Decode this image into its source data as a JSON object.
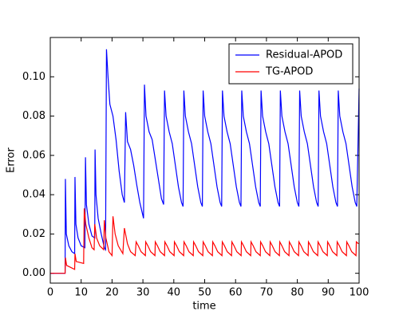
{
  "chart_data": {
    "type": "line",
    "xlabel": "time",
    "ylabel": "Error",
    "xlim": [
      0,
      100
    ],
    "xticks": [
      0,
      10,
      20,
      30,
      40,
      50,
      60,
      70,
      80,
      90,
      100
    ],
    "ylim": [
      -0.005,
      0.12
    ],
    "yticks": [
      {
        "value": 0,
        "label": "0.00"
      },
      0.02,
      0.04,
      0.06,
      0.08,
      {
        "value": 0.1,
        "label": "0.10"
      }
    ],
    "legend": "upper right",
    "series": [
      {
        "name": "Residual-APOD",
        "color": "#0000ff",
        "x": [
          0,
          4.8,
          4.9,
          5.2,
          6,
          7,
          7.9,
          8,
          8.3,
          9,
          10,
          11.2,
          11.4,
          11.7,
          12.5,
          13.5,
          14.4,
          14.5,
          14.8,
          15.5,
          16.5,
          17.5,
          17.9,
          18.2,
          18.7,
          19.3,
          20.3,
          21.3,
          22.3,
          23.3,
          24,
          24.4,
          25,
          26,
          27,
          28,
          29,
          30.2,
          30.5,
          31,
          32,
          33,
          34,
          35,
          36,
          36.7,
          37,
          37.5,
          38.5,
          39.5,
          40.5,
          41.5,
          42.5,
          43,
          43.25,
          43.75,
          44.75,
          45.75,
          46.75,
          47.75,
          48.75,
          49.25,
          49.5,
          50,
          51,
          52,
          53,
          54,
          55,
          55.5,
          55.75,
          56.25,
          57.25,
          58.25,
          59.25,
          60.25,
          61.25,
          61.75,
          62,
          62.5,
          63.5,
          64.5,
          65.5,
          66.5,
          67.5,
          68,
          68.25,
          68.75,
          69.75,
          70.75,
          71.75,
          72.75,
          73.75,
          74.25,
          74.5,
          75,
          76,
          77,
          78,
          79,
          80,
          80.5,
          80.75,
          81.25,
          82.25,
          83.25,
          84.25,
          85.25,
          86.25,
          86.75,
          87,
          87.5,
          88.5,
          89.5,
          90.5,
          91.5,
          92.5,
          93,
          93.25,
          93.75,
          94.75,
          95.75,
          96.75,
          97.75,
          98.75,
          99.25,
          100
        ],
        "values": [
          0,
          0,
          0.048,
          0.02,
          0.014,
          0.011,
          0.01,
          0.049,
          0.025,
          0.018,
          0.014,
          0.013,
          0.059,
          0.035,
          0.025,
          0.019,
          0.018,
          0.063,
          0.04,
          0.028,
          0.02,
          0.013,
          0.012,
          0.114,
          0.1,
          0.086,
          0.08,
          0.068,
          0.052,
          0.04,
          0.036,
          0.082,
          0.067,
          0.063,
          0.055,
          0.045,
          0.036,
          0.028,
          0.096,
          0.08,
          0.072,
          0.068,
          0.058,
          0.048,
          0.038,
          0.035,
          0.093,
          0.08,
          0.072,
          0.066,
          0.055,
          0.044,
          0.036,
          0.034,
          0.093,
          0.08,
          0.072,
          0.066,
          0.055,
          0.044,
          0.036,
          0.034,
          0.093,
          0.08,
          0.072,
          0.066,
          0.055,
          0.044,
          0.036,
          0.034,
          0.093,
          0.08,
          0.072,
          0.066,
          0.055,
          0.044,
          0.036,
          0.034,
          0.093,
          0.08,
          0.072,
          0.066,
          0.055,
          0.044,
          0.036,
          0.034,
          0.093,
          0.08,
          0.072,
          0.066,
          0.055,
          0.044,
          0.036,
          0.034,
          0.093,
          0.08,
          0.072,
          0.066,
          0.055,
          0.044,
          0.036,
          0.034,
          0.093,
          0.08,
          0.072,
          0.066,
          0.055,
          0.044,
          0.036,
          0.034,
          0.093,
          0.08,
          0.072,
          0.066,
          0.055,
          0.044,
          0.036,
          0.034,
          0.093,
          0.08,
          0.072,
          0.066,
          0.055,
          0.044,
          0.036,
          0.034,
          0.094
        ]
      },
      {
        "name": "TG-APOD",
        "color": "#ff0000",
        "x": [
          0,
          4.8,
          4.9,
          5.3,
          7.9,
          8,
          8.4,
          10.8,
          11,
          11.5,
          12.5,
          13.5,
          14.2,
          14.4,
          15,
          16,
          17.3,
          17.5,
          18,
          19,
          20,
          20.3,
          21,
          22,
          23.5,
          24,
          25,
          26,
          27.5,
          27.8,
          28.5,
          29.4,
          30.8,
          30.9,
          31.6,
          32.5,
          33.9,
          34,
          34.7,
          35.6,
          37,
          37.1,
          37.8,
          38.7,
          40.1,
          40.2,
          40.9,
          41.8,
          43.2,
          43.3,
          44,
          44.9,
          46.3,
          46.4,
          47.1,
          48,
          49.4,
          49.5,
          50.2,
          51.1,
          52.5,
          52.6,
          53.3,
          54.2,
          55.6,
          55.7,
          56.4,
          57.3,
          58.7,
          58.8,
          59.5,
          60.4,
          61.8,
          61.9,
          62.6,
          63.5,
          64.9,
          65,
          65.7,
          66.6,
          68,
          68.1,
          68.8,
          69.7,
          71.1,
          71.2,
          71.9,
          72.8,
          74.2,
          74.3,
          75,
          75.9,
          77.3,
          77.4,
          78.1,
          79,
          80.4,
          80.5,
          81.2,
          82.1,
          83.5,
          83.6,
          84.3,
          85.2,
          86.6,
          86.7,
          87.4,
          88.3,
          89.7,
          89.8,
          90.5,
          91.4,
          92.8,
          92.9,
          93.6,
          94.5,
          95.9,
          96,
          96.7,
          97.6,
          99,
          99.1,
          99.8
        ],
        "values": [
          0,
          0,
          0.008,
          0.004,
          0.002,
          0.01,
          0.006,
          0.005,
          0.033,
          0.025,
          0.018,
          0.013,
          0.012,
          0.025,
          0.018,
          0.014,
          0.012,
          0.027,
          0.018,
          0.011,
          0.009,
          0.029,
          0.02,
          0.014,
          0.01,
          0.023,
          0.015,
          0.011,
          0.009,
          0.016,
          0.014,
          0.011,
          0.009,
          0.016,
          0.014,
          0.011,
          0.009,
          0.016,
          0.014,
          0.011,
          0.009,
          0.016,
          0.014,
          0.011,
          0.009,
          0.016,
          0.014,
          0.011,
          0.009,
          0.016,
          0.014,
          0.011,
          0.009,
          0.016,
          0.014,
          0.011,
          0.009,
          0.016,
          0.014,
          0.011,
          0.009,
          0.016,
          0.014,
          0.011,
          0.009,
          0.016,
          0.014,
          0.011,
          0.009,
          0.016,
          0.014,
          0.011,
          0.009,
          0.016,
          0.014,
          0.011,
          0.009,
          0.016,
          0.014,
          0.011,
          0.009,
          0.016,
          0.014,
          0.011,
          0.009,
          0.016,
          0.014,
          0.011,
          0.009,
          0.016,
          0.014,
          0.011,
          0.009,
          0.016,
          0.014,
          0.011,
          0.009,
          0.016,
          0.014,
          0.011,
          0.009,
          0.016,
          0.014,
          0.011,
          0.009,
          0.016,
          0.014,
          0.011,
          0.009,
          0.016,
          0.014,
          0.011,
          0.009,
          0.016,
          0.014,
          0.011,
          0.009,
          0.016,
          0.014,
          0.011,
          0.009,
          0.016,
          0.015
        ]
      }
    ]
  }
}
